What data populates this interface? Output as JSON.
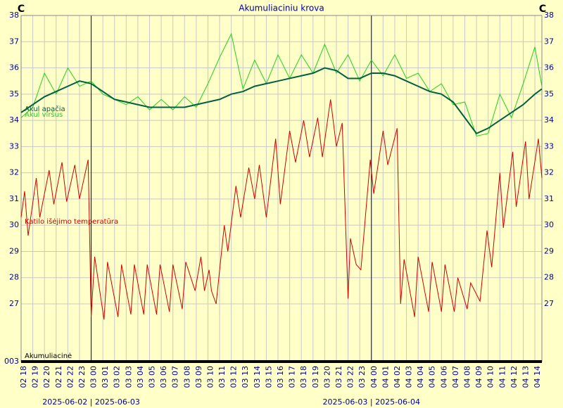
{
  "chart_data": {
    "type": "line",
    "title": "Akumuliaciniu krova",
    "y_label": "C",
    "y2_label": "C",
    "xlim": [
      0,
      44.6
    ],
    "xticks": [
      {
        "value": 0,
        "label": "02 18"
      },
      {
        "value": 1,
        "label": "02 19"
      },
      {
        "value": 2,
        "label": "02 20"
      },
      {
        "value": 3,
        "label": "02 21"
      },
      {
        "value": 4,
        "label": "02 22"
      },
      {
        "value": 5,
        "label": "02 23"
      },
      {
        "value": 6,
        "label": "03 00"
      },
      {
        "value": 7,
        "label": "03 01"
      },
      {
        "value": 8,
        "label": "03 02"
      },
      {
        "value": 9,
        "label": "03 03"
      },
      {
        "value": 10,
        "label": "03 04"
      },
      {
        "value": 11,
        "label": "03 05"
      },
      {
        "value": 12,
        "label": "03 06"
      },
      {
        "value": 13,
        "label": "03 07"
      },
      {
        "value": 14,
        "label": "03 08"
      },
      {
        "value": 15,
        "label": "03 09"
      },
      {
        "value": 16,
        "label": "03 10"
      },
      {
        "value": 17,
        "label": "03 11"
      },
      {
        "value": 18,
        "label": "03 12"
      },
      {
        "value": 19,
        "label": "03 13"
      },
      {
        "value": 20,
        "label": "03 14"
      },
      {
        "value": 21,
        "label": "03 15"
      },
      {
        "value": 22,
        "label": "03 16"
      },
      {
        "value": 23,
        "label": "03 17"
      },
      {
        "value": 24,
        "label": "03 18"
      },
      {
        "value": 25,
        "label": "03 19"
      },
      {
        "value": 26,
        "label": "03 20"
      },
      {
        "value": 27,
        "label": "03 21"
      },
      {
        "value": 28,
        "label": "03 22"
      },
      {
        "value": 29,
        "label": "03 23"
      },
      {
        "value": 30,
        "label": "04 00"
      },
      {
        "value": 31,
        "label": "04 01"
      },
      {
        "value": 32,
        "label": "04 02"
      },
      {
        "value": 33,
        "label": "04 03"
      },
      {
        "value": 34,
        "label": "04 04"
      },
      {
        "value": 35,
        "label": "04 05"
      },
      {
        "value": 36,
        "label": "04 06"
      },
      {
        "value": 37,
        "label": "04 07"
      },
      {
        "value": 38,
        "label": "04 08"
      },
      {
        "value": 39,
        "label": "04 09"
      },
      {
        "value": 40,
        "label": "04 10"
      },
      {
        "value": 41,
        "label": "04 11"
      },
      {
        "value": 42,
        "label": "04 12"
      },
      {
        "value": 43,
        "label": "04 13"
      },
      {
        "value": 44,
        "label": "04 14"
      }
    ],
    "day_lines": [
      6,
      30
    ],
    "date_labels": [
      {
        "value": 6,
        "label": "2025-06-02 | 2025-06-03"
      },
      {
        "value": 30,
        "label": "2025-06-03 | 2025-06-04"
      }
    ],
    "ylim": [
      24.8,
      38
    ],
    "yticks": [
      27,
      28,
      29,
      30,
      31,
      32,
      33,
      34,
      35,
      36,
      37,
      38
    ],
    "y2lim": [
      24.8,
      38
    ],
    "y2ticks": [
      27,
      28,
      29,
      30,
      31,
      32,
      33,
      34,
      35,
      36,
      37,
      38
    ],
    "grid": true,
    "strip": {
      "label": "Akumuliacinė",
      "axis_label": "003"
    },
    "series": [
      {
        "name": "Akul apačia",
        "color": "#006040",
        "x": [
          0,
          1,
          2,
          3,
          4,
          5,
          6,
          7,
          8,
          9,
          10,
          11,
          12,
          13,
          14,
          15,
          16,
          17,
          18,
          19,
          20,
          21,
          22,
          23,
          24,
          25,
          26,
          27,
          28,
          29,
          30,
          31,
          32,
          33,
          34,
          35,
          36,
          37,
          38,
          39,
          40,
          41,
          42,
          43,
          44,
          44.6
        ],
        "values": [
          34.3,
          34.6,
          34.9,
          35.1,
          35.3,
          35.5,
          35.4,
          35.1,
          34.8,
          34.7,
          34.6,
          34.5,
          34.5,
          34.5,
          34.5,
          34.6,
          34.7,
          34.8,
          35.0,
          35.1,
          35.3,
          35.4,
          35.5,
          35.6,
          35.7,
          35.8,
          36.0,
          35.9,
          35.6,
          35.6,
          35.8,
          35.8,
          35.7,
          35.5,
          35.3,
          35.1,
          35.0,
          34.7,
          34.1,
          33.5,
          33.7,
          34.0,
          34.3,
          34.6,
          35.0,
          35.2
        ]
      },
      {
        "name": "Akul viršus",
        "color": "#20d020",
        "x": [
          0,
          1,
          2,
          3,
          4,
          5,
          6,
          7,
          8,
          9,
          10,
          11,
          12,
          13,
          14,
          15,
          16,
          17,
          18,
          19,
          20,
          21,
          22,
          23,
          24,
          25,
          26,
          27,
          28,
          29,
          30,
          31,
          32,
          33,
          34,
          35,
          36,
          37,
          38,
          39,
          40,
          41,
          42,
          43,
          44,
          44.6
        ],
        "values": [
          34.1,
          34.5,
          35.8,
          35.0,
          36.0,
          35.3,
          35.5,
          35.0,
          34.8,
          34.6,
          34.9,
          34.4,
          34.8,
          34.4,
          34.9,
          34.5,
          35.4,
          36.4,
          37.3,
          35.2,
          36.3,
          35.4,
          36.5,
          35.6,
          36.5,
          35.8,
          36.9,
          35.8,
          36.5,
          35.5,
          36.3,
          35.7,
          36.5,
          35.6,
          35.8,
          35.1,
          35.4,
          34.6,
          34.7,
          33.4,
          33.5,
          35.0,
          34.1,
          35.4,
          36.8,
          35.3
        ]
      },
      {
        "name": "Katilo išėjimo temperatūra",
        "color": "#d00000",
        "x": [
          0,
          0.3,
          0.6,
          1.3,
          1.6,
          2.4,
          2.8,
          3.5,
          3.9,
          4.6,
          5.0,
          5.74,
          6.0,
          6.3,
          7.1,
          7.4,
          8.3,
          8.6,
          9.4,
          9.7,
          10.5,
          10.8,
          11.6,
          11.9,
          12.7,
          13.0,
          13.8,
          14.1,
          14.9,
          15.4,
          15.7,
          16.1,
          16.3,
          16.7,
          17.4,
          17.7,
          18.4,
          18.8,
          19.5,
          20.0,
          20.4,
          21.0,
          21.8,
          22.2,
          23.0,
          23.5,
          24.2,
          24.7,
          25.4,
          25.8,
          26.5,
          27.0,
          27.5,
          28.0,
          28.2,
          28.7,
          29.1,
          29.9,
          30.2,
          31.0,
          31.4,
          32.2,
          32.5,
          32.8,
          33.7,
          34.0,
          34.9,
          35.2,
          36.0,
          36.3,
          37.1,
          37.4,
          38.2,
          38.5,
          39.3,
          39.9,
          40.3,
          41.0,
          41.3,
          42.1,
          42.4,
          43.2,
          43.5,
          44.3,
          44.6
        ],
        "values": [
          30.3,
          31.3,
          29.6,
          31.8,
          30.3,
          32.1,
          30.8,
          32.4,
          30.9,
          32.3,
          31.0,
          32.5,
          26.5,
          28.8,
          26.4,
          28.6,
          26.5,
          28.5,
          26.6,
          28.5,
          26.6,
          28.5,
          26.6,
          28.5,
          26.7,
          28.5,
          26.8,
          28.6,
          27.5,
          28.8,
          27.5,
          28.3,
          27.5,
          27.0,
          30.0,
          29.0,
          31.5,
          30.3,
          32.2,
          31.0,
          32.3,
          30.3,
          33.3,
          30.8,
          33.6,
          32.4,
          34.0,
          32.6,
          34.1,
          32.6,
          34.8,
          33.0,
          33.9,
          27.2,
          29.5,
          28.5,
          28.3,
          32.5,
          31.2,
          33.6,
          32.3,
          33.7,
          27.0,
          28.7,
          26.5,
          28.8,
          26.7,
          28.6,
          26.7,
          28.5,
          26.7,
          28.0,
          26.8,
          27.8,
          27.1,
          29.8,
          28.4,
          32.0,
          29.9,
          32.8,
          30.7,
          33.2,
          31.0,
          33.3,
          31.8
        ]
      }
    ]
  }
}
